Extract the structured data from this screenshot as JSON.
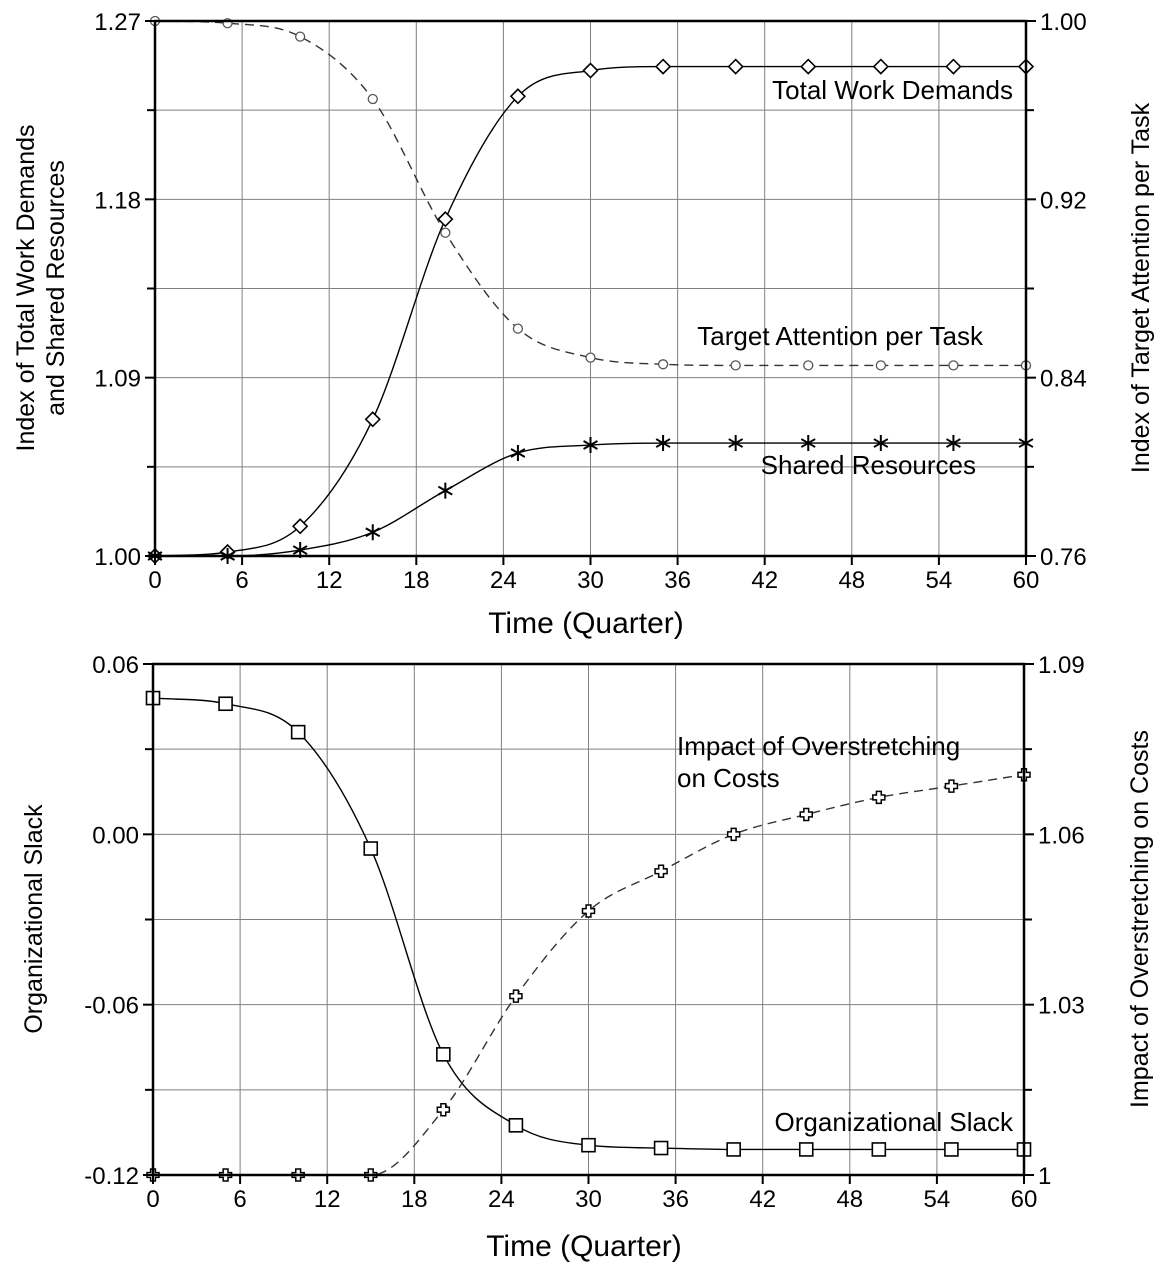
{
  "chart_data": [
    {
      "type": "line",
      "xlabel": "Time (Quarter)",
      "ylabel": [
        "Index of Total Work Demands",
        "and Shared Resources"
      ],
      "y2label": "Index of Target Attention per Task",
      "xlim": [
        0,
        60
      ],
      "ylim": [
        1.0,
        1.27
      ],
      "y2lim": [
        0.76,
        1.0
      ],
      "xticks": [
        0,
        6,
        12,
        18,
        24,
        30,
        36,
        42,
        48,
        54,
        60
      ],
      "yticks": [
        "1.00",
        "1.09",
        "1.18",
        "1.27"
      ],
      "y2ticks": [
        "0.76",
        "0.84",
        "0.92",
        "1.00"
      ],
      "grid": true,
      "x": [
        0,
        5,
        10,
        15,
        20,
        25,
        30,
        35,
        40,
        45,
        50,
        55,
        60
      ],
      "series": [
        {
          "name": "Total Work Demands",
          "axis": "left",
          "marker": "diamond",
          "dash": "solid",
          "values": [
            1.0,
            1.002,
            1.015,
            1.069,
            1.17,
            1.232,
            1.245,
            1.247,
            1.247,
            1.247,
            1.247,
            1.247,
            1.247
          ]
        },
        {
          "name": "Shared Resources",
          "axis": "left",
          "marker": "asterisk",
          "dash": "solid",
          "values": [
            1.0,
            1.0,
            1.003,
            1.012,
            1.033,
            1.052,
            1.056,
            1.057,
            1.057,
            1.057,
            1.057,
            1.057,
            1.057
          ]
        },
        {
          "name": "Target Attention per Task",
          "axis": "right",
          "marker": "circle",
          "dash": "dashed",
          "values": [
            1.0,
            0.999,
            0.993,
            0.965,
            0.905,
            0.862,
            0.849,
            0.846,
            0.8455,
            0.8455,
            0.8455,
            0.8455,
            0.8455
          ]
        }
      ],
      "labels": {
        "total_work_demands": "Total Work Demands",
        "target_attention": "Target Attention per Task",
        "shared_resources": "Shared Resources"
      }
    },
    {
      "type": "line",
      "xlabel": "Time (Quarter)",
      "ylabel": "Organizational Slack",
      "y2label": "Impact of Overstretching on Costs",
      "xlim": [
        0,
        60
      ],
      "ylim": [
        -0.12,
        0.06
      ],
      "y2lim": [
        1.0,
        1.09
      ],
      "xticks": [
        0,
        6,
        12,
        18,
        24,
        30,
        36,
        42,
        48,
        54,
        60
      ],
      "yticks": [
        "-0.12",
        "-0.06",
        "0.00",
        "0.06"
      ],
      "y2ticks": [
        "1",
        "1.03",
        "1.06",
        "1.09"
      ],
      "grid": true,
      "x": [
        0,
        5,
        10,
        15,
        20,
        25,
        30,
        35,
        40,
        45,
        50,
        55,
        60
      ],
      "series": [
        {
          "name": "Organizational Slack",
          "axis": "left",
          "marker": "square",
          "dash": "solid",
          "values": [
            0.048,
            0.046,
            0.036,
            -0.005,
            -0.0775,
            -0.1025,
            -0.1095,
            -0.1105,
            -0.111,
            -0.111,
            -0.111,
            -0.111,
            -0.111
          ]
        },
        {
          "name": "Impact of Overstretching on Costs",
          "axis": "right",
          "marker": "cross",
          "dash": "dashed",
          "values": [
            1.0,
            1.0,
            1.0,
            1.0,
            1.0115,
            1.0315,
            1.0465,
            1.0535,
            1.06,
            1.0635,
            1.0665,
            1.0685,
            1.0705
          ]
        }
      ],
      "labels": {
        "impact_line1": "Impact of Overstretching",
        "impact_line2": "on Costs",
        "organizational_slack": "Organizational Slack"
      }
    }
  ]
}
